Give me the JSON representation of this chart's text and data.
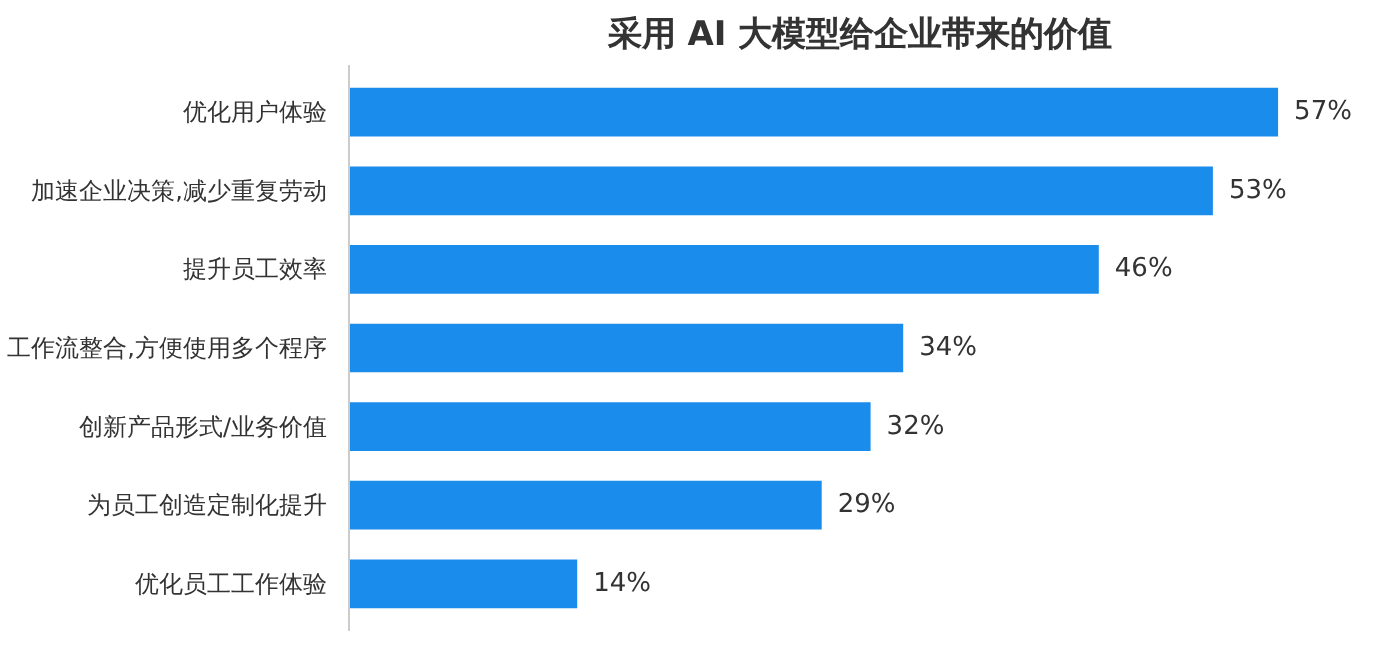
{
  "chart_data": {
    "type": "bar",
    "orientation": "horizontal",
    "title": "采用 AI 大模型给企业带来的价值",
    "categories": [
      "优化用户体验",
      "加速企业决策,减少重复劳动",
      "提升员工效率",
      "工作流整合,方便使用多个程序",
      "创新产品形式/业务价值",
      "为员工创造定制化提升",
      "优化员工工作体验"
    ],
    "values": [
      57,
      53,
      46,
      34,
      32,
      29,
      14
    ],
    "value_labels": [
      "57%",
      "53%",
      "46%",
      "34%",
      "32%",
      "29%",
      "14%"
    ],
    "color": "#1a8ceb",
    "grid": false
  }
}
